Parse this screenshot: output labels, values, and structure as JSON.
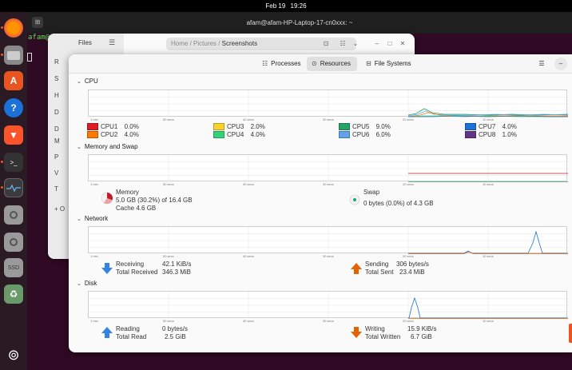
{
  "topbar": {
    "date": "Feb 19",
    "time": "19:26"
  },
  "terminal": {
    "title": "afam@afam-HP-Laptop-17-cn0xxx: ~",
    "prompt": "afam@"
  },
  "files": {
    "title": "Files",
    "sidebar_letters": [
      "R",
      "S",
      "H",
      "D",
      "D",
      "M",
      "P",
      "V",
      "T",
      "+ O"
    ],
    "path": [
      "Home",
      "Pictures",
      "Screenshots"
    ]
  },
  "sysmon": {
    "tabs": [
      {
        "label": "Processes",
        "icon": "processes-icon"
      },
      {
        "label": "Resources",
        "icon": "resources-icon"
      },
      {
        "label": "File Systems",
        "icon": "filesystems-icon"
      }
    ],
    "active_tab": "Resources",
    "ticks": [
      "1 min",
      "50 secs",
      "40 secs",
      "30 secs",
      "20 secs",
      "10 secs"
    ],
    "cpu": {
      "title": "CPU",
      "cores": [
        {
          "name": "CPU1",
          "value": "0.0%",
          "color": "#e01b24"
        },
        {
          "name": "CPU2",
          "value": "4.0%",
          "color": "#ff7800"
        },
        {
          "name": "CPU3",
          "value": "2.0%",
          "color": "#f6d32d"
        },
        {
          "name": "CPU4",
          "value": "4.0%",
          "color": "#33d17a"
        },
        {
          "name": "CPU5",
          "value": "9.0%",
          "color": "#26a269"
        },
        {
          "name": "CPU6",
          "value": "6.0%",
          "color": "#62a0ea"
        },
        {
          "name": "CPU7",
          "value": "4.0%",
          "color": "#1c71d8"
        },
        {
          "name": "CPU8",
          "value": "1.0%",
          "color": "#613583"
        }
      ]
    },
    "memory": {
      "title": "Memory and Swap",
      "memory_label": "Memory",
      "memory_value": "5.0 GB (30.2%) of 16.4 GB",
      "cache_value": "Cache 4.6 GB",
      "swap_label": "Swap",
      "swap_value": "0 bytes (0.0%) of 4.3 GB"
    },
    "network": {
      "title": "Network",
      "receiving_label": "Receiving",
      "receiving_value": "42.1 KiB/s",
      "total_received_label": "Total Received",
      "total_received_value": "346.3 MiB",
      "sending_label": "Sending",
      "sending_value": "306 bytes/s",
      "total_sent_label": "Total Sent",
      "total_sent_value": "23.4 MiB"
    },
    "disk": {
      "title": "Disk",
      "reading_label": "Reading",
      "reading_value": "0 bytes/s",
      "total_read_label": "Total Read",
      "total_read_value": "2.5 GiB",
      "writing_label": "Writing",
      "writing_value": "15.9 KiB/s",
      "total_written_label": "Total Written",
      "total_written_value": "6.7 GiB"
    }
  }
}
